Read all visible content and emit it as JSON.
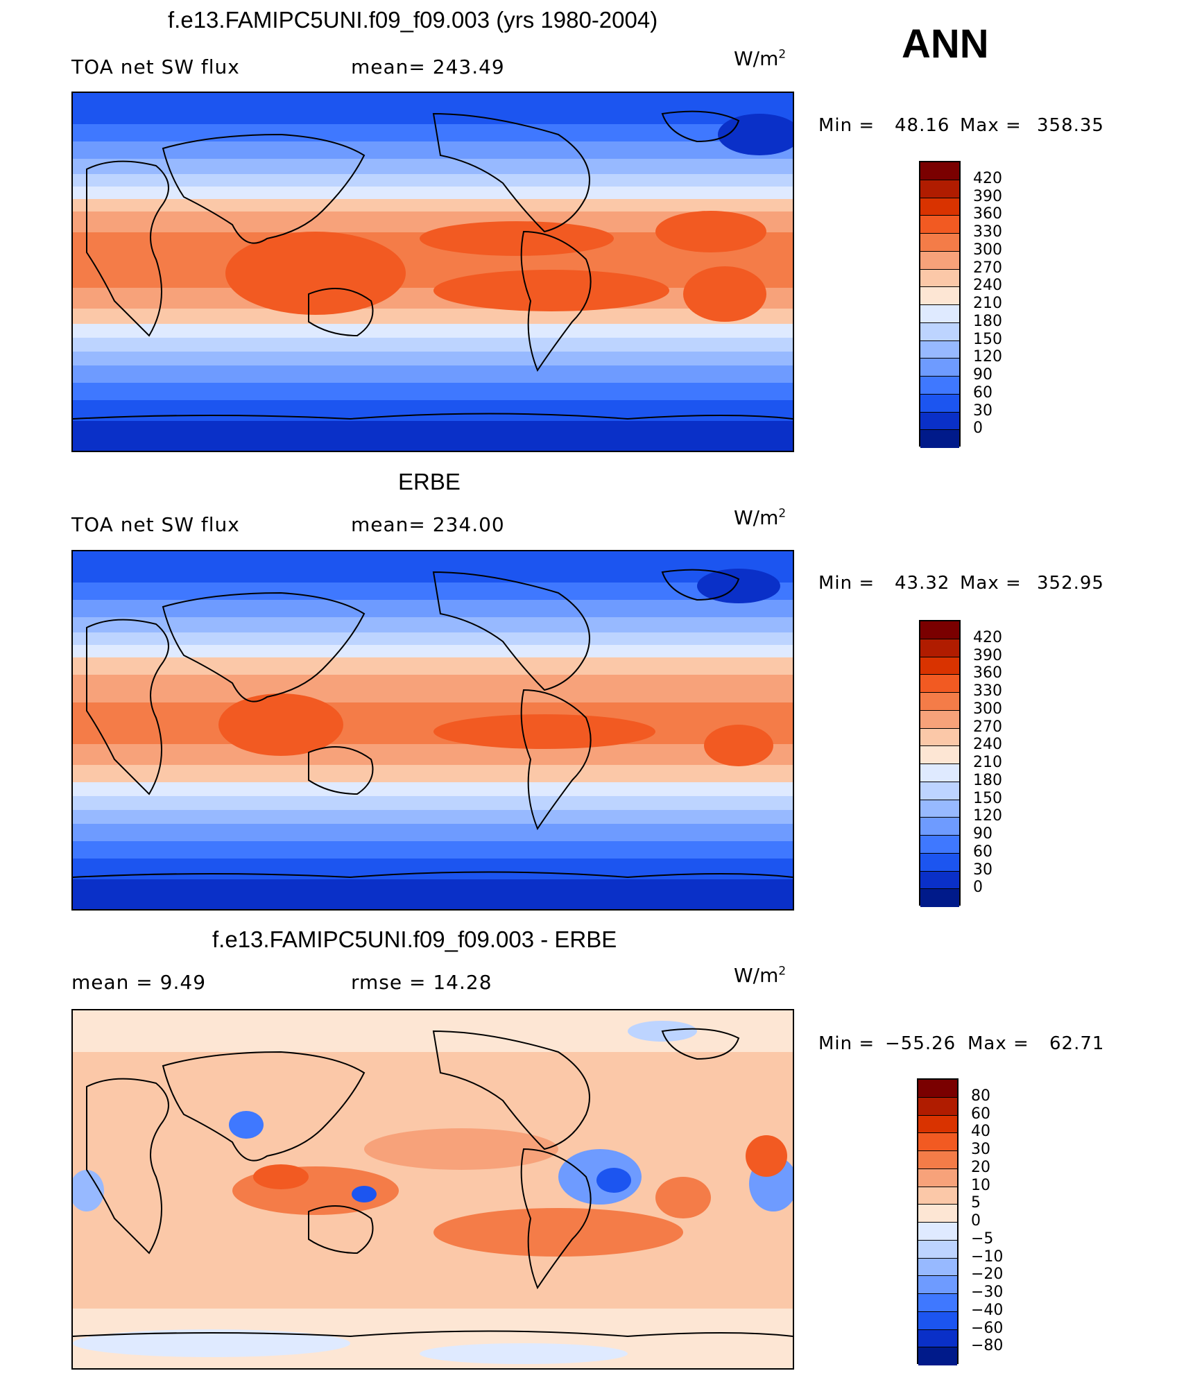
{
  "season": "ANN",
  "units_base": "W/m",
  "units_exp": "2",
  "panels": [
    {
      "title": "f.e13.FAMIPC5UNI.f09_f09.003 (yrs 1980-2004)",
      "left_label": "TOA net SW flux",
      "stat_label": "mean= 243.49",
      "min_label": "Min  =",
      "min_value": "48.16",
      "max_label": "Max  =",
      "max_value": "358.35",
      "colorbar": {
        "labels": [
          "420",
          "390",
          "360",
          "330",
          "300",
          "270",
          "240",
          "210",
          "180",
          "150",
          "120",
          "90",
          "60",
          "30",
          "0"
        ],
        "colors": [
          "#7a0000",
          "#b01c00",
          "#d93300",
          "#f25a22",
          "#f47c48",
          "#f7a27a",
          "#fbc8a8",
          "#fde6d4",
          "#dfeaff",
          "#bdd4ff",
          "#97b9ff",
          "#6e9bff",
          "#3f78ff",
          "#1c55f0",
          "#0a30c8",
          "#001a8a"
        ]
      }
    },
    {
      "title": "ERBE",
      "left_label": "TOA net SW flux",
      "stat_label": "mean= 234.00",
      "min_label": "Min  =",
      "min_value": "43.32",
      "max_label": "Max  =",
      "max_value": "352.95",
      "colorbar": {
        "labels": [
          "420",
          "390",
          "360",
          "330",
          "300",
          "270",
          "240",
          "210",
          "180",
          "150",
          "120",
          "90",
          "60",
          "30",
          "0"
        ],
        "colors": [
          "#7a0000",
          "#b01c00",
          "#d93300",
          "#f25a22",
          "#f47c48",
          "#f7a27a",
          "#fbc8a8",
          "#fde6d4",
          "#dfeaff",
          "#bdd4ff",
          "#97b9ff",
          "#6e9bff",
          "#3f78ff",
          "#1c55f0",
          "#0a30c8",
          "#001a8a"
        ]
      }
    },
    {
      "title": "f.e13.FAMIPC5UNI.f09_f09.003 - ERBE",
      "left_label": "mean =     9.49",
      "stat_label": "rmse =    14.28",
      "min_label": "Min  =",
      "min_value": "−55.26",
      "max_label": "Max  =",
      "max_value": "62.71",
      "colorbar": {
        "labels": [
          "80",
          "60",
          "40",
          "30",
          "20",
          "10",
          "5",
          "0",
          "−5",
          "−10",
          "−20",
          "−30",
          "−40",
          "−60",
          "−80"
        ],
        "colors": [
          "#7a0000",
          "#b01c00",
          "#d93300",
          "#f25a22",
          "#f47c48",
          "#f7a27a",
          "#fbc8a8",
          "#fde6d4",
          "#dfeaff",
          "#bdd4ff",
          "#97b9ff",
          "#6e9bff",
          "#3f78ff",
          "#1c55f0",
          "#0a30c8",
          "#001a8a"
        ]
      }
    }
  ]
}
